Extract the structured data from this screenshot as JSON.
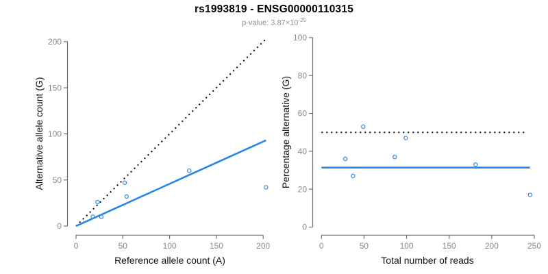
{
  "header": {
    "title": "rs1993819 - ENSG00000110315",
    "subtitle_main": "p-value: 3.87×10",
    "subtitle_exponent": "-25"
  },
  "colors": {
    "fit_line_blue": "#2487e8",
    "point_blue": "#3f8fdc",
    "dotted_black": "#000000",
    "axis_line_gray": "#6e6e6e",
    "tick_label_gray": "#8a8a8a",
    "subtitle_gray": "#8f8f8f"
  },
  "chart_data": [
    {
      "type": "scatter",
      "name": "allele-counts",
      "xlabel": "Reference allele count (A)",
      "ylabel": "Alternative allele count (G)",
      "xlim": [
        0,
        205
      ],
      "ylim": [
        0,
        205
      ],
      "xticks": [
        0,
        50,
        100,
        150,
        200
      ],
      "yticks": [
        0,
        50,
        100,
        150,
        200
      ],
      "grid": false,
      "legend": "none",
      "points": [
        [
          18,
          10
        ],
        [
          23,
          26
        ],
        [
          27,
          10
        ],
        [
          52,
          47
        ],
        [
          54,
          32
        ],
        [
          121,
          60
        ],
        [
          203,
          42
        ]
      ],
      "lines": [
        {
          "name": "identity-line",
          "style": "dotted",
          "color": "black",
          "from": [
            0,
            0
          ],
          "to": [
            203,
            203
          ]
        },
        {
          "name": "expected-ratio-line",
          "style": "solid",
          "color": "blue",
          "from": [
            0,
            0
          ],
          "to": [
            203,
            93
          ]
        }
      ]
    },
    {
      "type": "scatter",
      "name": "percentage-alternative",
      "xlabel": "Total number of reads",
      "ylabel": "Percentage alternative (G)",
      "xlim": [
        0,
        250
      ],
      "ylim": [
        0,
        100
      ],
      "xticks": [
        0,
        50,
        100,
        150,
        200,
        250
      ],
      "yticks": [
        0,
        20,
        40,
        60,
        80,
        100
      ],
      "grid": false,
      "legend": "none",
      "points": [
        [
          28,
          36
        ],
        [
          37,
          27
        ],
        [
          49,
          53
        ],
        [
          86,
          37
        ],
        [
          99,
          47
        ],
        [
          181,
          33
        ],
        [
          245,
          17
        ]
      ],
      "lines": [
        {
          "name": "fifty-percent-line",
          "style": "dotted",
          "color": "black",
          "from": [
            0,
            50
          ],
          "to": [
            242,
            50
          ]
        },
        {
          "name": "mean-percentage-line",
          "style": "solid",
          "color": "blue",
          "from": [
            0,
            31.4
          ],
          "to": [
            245,
            31.4
          ]
        }
      ]
    }
  ]
}
